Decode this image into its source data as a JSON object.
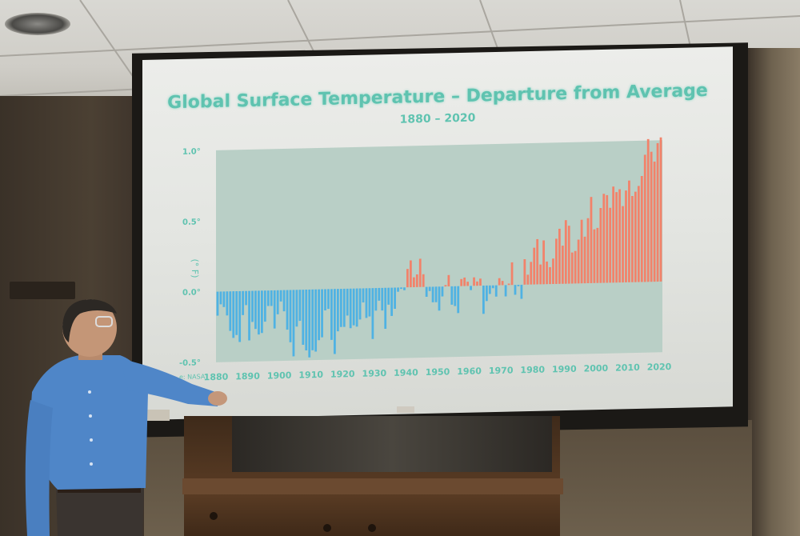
{
  "slide": {
    "title": "Global Surface Temperature – Departure from Average",
    "subtitle": "1880 – 2020",
    "credit": "e: NASA"
  },
  "chart_data": {
    "type": "bar",
    "title": "Global Surface Temperature – Departure from Average",
    "subtitle": "1880 – 2020",
    "xlabel": "",
    "ylabel": "(° F)",
    "ylim": [
      -0.5,
      1.0
    ],
    "y_ticks": [
      "1.0°",
      "0.5°",
      "0.0°",
      "-0.5°"
    ],
    "x_ticks": [
      "1880",
      "1890",
      "1900",
      "1910",
      "1920",
      "1930",
      "1940",
      "1950",
      "1960",
      "1970",
      "1980",
      "1990",
      "2000",
      "2010",
      "2020"
    ],
    "colors": {
      "negative": "#4fb2e3",
      "positive": "#f2826a"
    },
    "x_start": 1880,
    "values": [
      -0.17,
      -0.09,
      -0.11,
      -0.17,
      -0.28,
      -0.33,
      -0.31,
      -0.36,
      -0.17,
      -0.1,
      -0.35,
      -0.22,
      -0.27,
      -0.31,
      -0.3,
      -0.22,
      -0.11,
      -0.11,
      -0.27,
      -0.17,
      -0.08,
      -0.15,
      -0.28,
      -0.37,
      -0.47,
      -0.26,
      -0.22,
      -0.39,
      -0.43,
      -0.48,
      -0.43,
      -0.44,
      -0.36,
      -0.34,
      -0.15,
      -0.14,
      -0.36,
      -0.46,
      -0.3,
      -0.27,
      -0.27,
      -0.19,
      -0.28,
      -0.26,
      -0.27,
      -0.22,
      -0.1,
      -0.21,
      -0.2,
      -0.36,
      -0.16,
      -0.09,
      -0.16,
      -0.29,
      -0.12,
      -0.2,
      -0.15,
      -0.03,
      -0.01,
      -0.02,
      0.13,
      0.19,
      0.07,
      0.09,
      0.2,
      0.09,
      -0.07,
      -0.03,
      -0.11,
      -0.11,
      -0.17,
      -0.07,
      0.01,
      0.08,
      -0.13,
      -0.14,
      -0.19,
      0.05,
      0.06,
      0.03,
      -0.03,
      0.06,
      0.03,
      0.05,
      -0.2,
      -0.11,
      -0.06,
      -0.02,
      -0.08,
      0.05,
      0.03,
      -0.08,
      0.01,
      0.16,
      -0.07,
      -0.01,
      -0.1,
      0.18,
      0.07,
      0.16,
      0.26,
      0.32,
      0.14,
      0.31,
      0.16,
      0.12,
      0.18,
      0.32,
      0.39,
      0.27,
      0.45,
      0.41,
      0.22,
      0.23,
      0.31,
      0.45,
      0.33,
      0.46,
      0.61,
      0.38,
      0.39,
      0.53,
      0.63,
      0.62,
      0.53,
      0.68,
      0.64,
      0.66,
      0.54,
      0.65,
      0.72,
      0.61,
      0.64,
      0.68,
      0.75,
      0.9,
      1.01,
      0.92,
      0.85,
      0.98,
      1.02
    ]
  }
}
